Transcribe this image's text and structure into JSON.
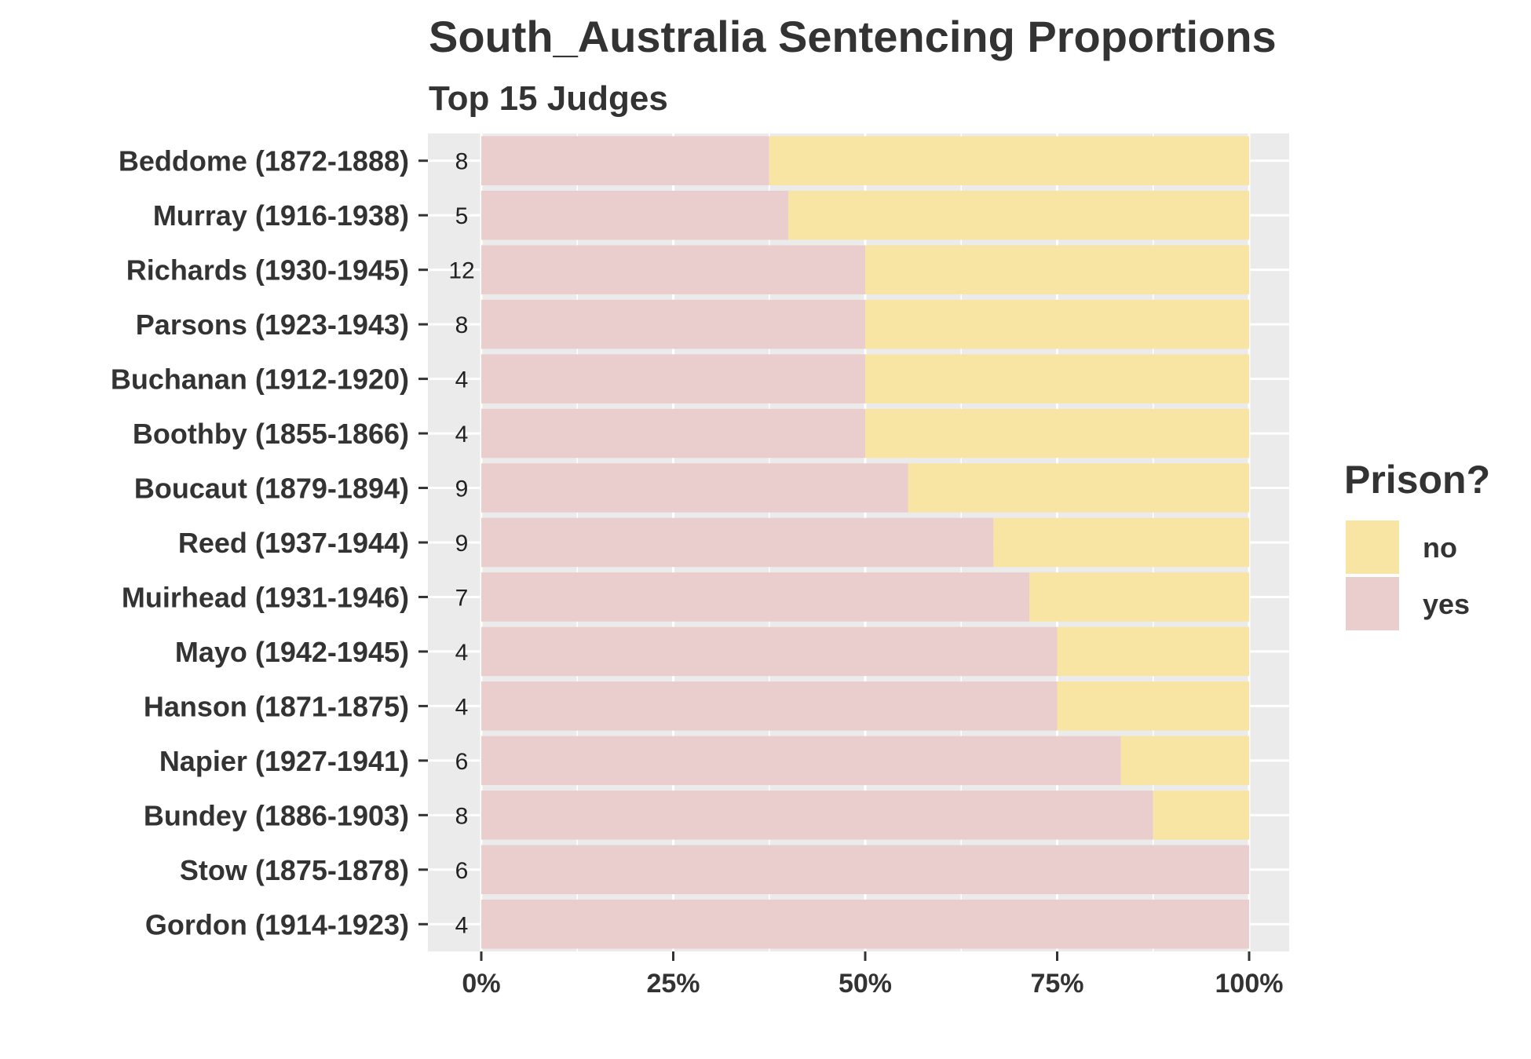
{
  "chart_data": {
    "type": "bar",
    "orientation": "horizontal",
    "stacked": "percent",
    "title": "South_Australia Sentencing Proportions",
    "subtitle": "Top 15 Judges",
    "xlabel": "",
    "ylabel": "",
    "xlim": [
      0,
      1
    ],
    "x_ticks": [
      "0%",
      "25%",
      "50%",
      "75%",
      "100%"
    ],
    "grid": true,
    "legend": {
      "title": "Prison?",
      "position": "right"
    },
    "categories": [
      "Beddome (1872-1888)",
      "Murray (1916-1938)",
      "Richards (1930-1945)",
      "Parsons (1923-1943)",
      "Buchanan (1912-1920)",
      "Boothby (1855-1866)",
      "Boucaut (1879-1894)",
      "Reed (1937-1944)",
      "Muirhead (1931-1946)",
      "Mayo (1942-1945)",
      "Hanson (1871-1875)",
      "Napier (1927-1941)",
      "Bundey (1886-1903)",
      "Stow (1875-1878)",
      "Gordon (1914-1923)"
    ],
    "counts": [
      "8",
      "5",
      "12",
      "8",
      "4",
      "4",
      "9",
      "9",
      "7",
      "4",
      "4",
      "6",
      "8",
      "6",
      "4"
    ],
    "series": [
      {
        "name": "yes",
        "color": "#EACECD",
        "values": [
          0.375,
          0.4,
          0.5,
          0.5,
          0.5,
          0.5,
          0.556,
          0.667,
          0.714,
          0.75,
          0.75,
          0.833,
          0.875,
          1.0,
          1.0
        ]
      },
      {
        "name": "no",
        "color": "#F9E5A3",
        "values": [
          0.625,
          0.6,
          0.5,
          0.5,
          0.5,
          0.5,
          0.444,
          0.333,
          0.286,
          0.25,
          0.25,
          0.167,
          0.125,
          0.0,
          0.0
        ]
      }
    ],
    "legend_order": [
      "no",
      "yes"
    ],
    "panel_background": "#EBEBEB",
    "grid_color": "#FFFFFF"
  }
}
